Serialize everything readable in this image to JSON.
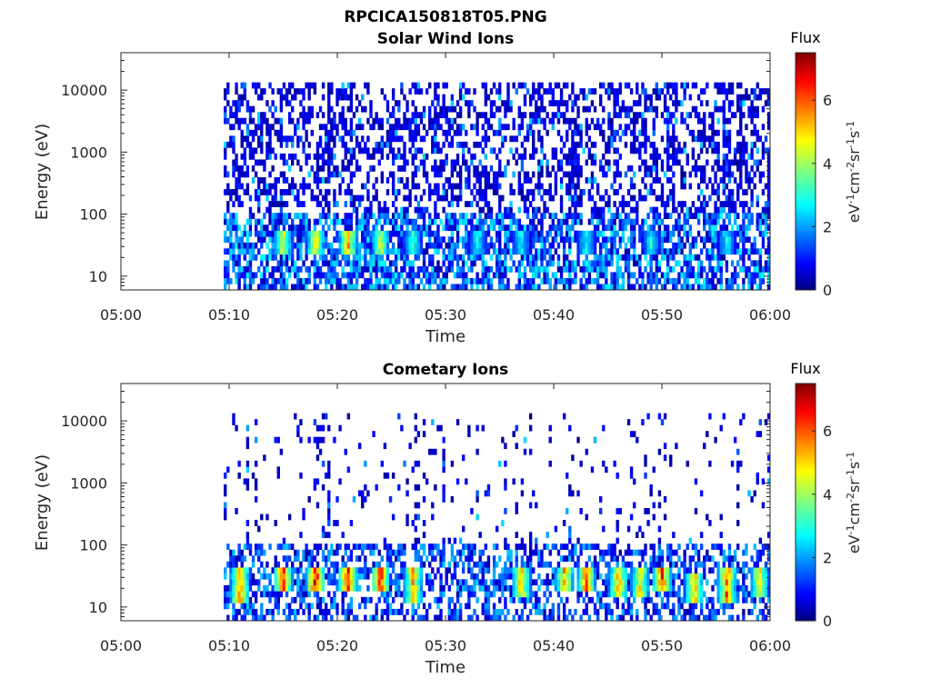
{
  "figure": {
    "title": "RPCICA150818T05.PNG"
  },
  "chart_data": [
    {
      "type": "heatmap",
      "title": "Solar Wind Ions",
      "xlabel": "Time",
      "ylabel": "Energy (eV)",
      "x_ticks": [
        "05:00",
        "05:10",
        "05:20",
        "05:30",
        "05:40",
        "05:50",
        "06:00"
      ],
      "xlim": [
        "05:00",
        "06:00"
      ],
      "data_start": "05:09:30",
      "y_scale": "log",
      "y_ticks": [
        10,
        100,
        1000,
        10000
      ],
      "y_tick_labels": [
        "10",
        "100",
        "1000",
        "10000"
      ],
      "ylim": [
        6,
        40000
      ],
      "colorbar": {
        "title": "Flux",
        "label": "eV-1cm-2sr-1s-1",
        "range": [
          0,
          7.5
        ],
        "ticks": [
          0,
          2,
          4,
          6
        ],
        "colormap": "jet"
      },
      "features": [
        {
          "time": "05:15",
          "energy_range": [
            25,
            45
          ],
          "flux": 4.5
        },
        {
          "time": "05:18",
          "energy_range": [
            25,
            45
          ],
          "flux": 5.0
        },
        {
          "time": "05:21",
          "energy_range": [
            25,
            45
          ],
          "flux": 5.5
        },
        {
          "time": "05:24",
          "energy_range": [
            25,
            45
          ],
          "flux": 4.5
        },
        {
          "time": "05:27",
          "energy_range": [
            25,
            45
          ],
          "flux": 3.5
        },
        {
          "time": "05:33",
          "energy_range": [
            25,
            45
          ],
          "flux": 3.0
        },
        {
          "time": "05:37",
          "energy_range": [
            25,
            45
          ],
          "flux": 3.0
        },
        {
          "time": "05:43",
          "energy_range": [
            25,
            45
          ],
          "flux": 3.0
        },
        {
          "time": "05:49",
          "energy_range": [
            25,
            45
          ],
          "flux": 3.0
        },
        {
          "time": "05:56",
          "energy_range": [
            25,
            45
          ],
          "flux": 3.0
        }
      ]
    },
    {
      "type": "heatmap",
      "title": "Cometary Ions",
      "xlabel": "Time",
      "ylabel": "Energy (eV)",
      "x_ticks": [
        "05:00",
        "05:10",
        "05:20",
        "05:30",
        "05:40",
        "05:50",
        "06:00"
      ],
      "xlim": [
        "05:00",
        "06:00"
      ],
      "data_start": "05:09:30",
      "y_scale": "log",
      "y_ticks": [
        10,
        100,
        1000,
        10000
      ],
      "y_tick_labels": [
        "10",
        "100",
        "1000",
        "10000"
      ],
      "ylim": [
        6,
        40000
      ],
      "colorbar": {
        "title": "Flux",
        "label": "eV-1cm-2sr-1s-1",
        "range": [
          0,
          7.5
        ],
        "ticks": [
          0,
          2,
          4,
          6
        ],
        "colormap": "jet"
      },
      "features": [
        {
          "time": "05:11",
          "energy_range": [
            12,
            35
          ],
          "flux": 6.0
        },
        {
          "time": "05:15",
          "energy_range": [
            20,
            40
          ],
          "flux": 6.5
        },
        {
          "time": "05:18",
          "energy_range": [
            20,
            40
          ],
          "flux": 6.8
        },
        {
          "time": "05:21",
          "energy_range": [
            20,
            40
          ],
          "flux": 7.0
        },
        {
          "time": "05:24",
          "energy_range": [
            20,
            40
          ],
          "flux": 6.5
        },
        {
          "time": "05:27",
          "energy_range": [
            12,
            35
          ],
          "flux": 5.5
        },
        {
          "time": "05:37",
          "energy_range": [
            15,
            35
          ],
          "flux": 5.5
        },
        {
          "time": "05:41",
          "energy_range": [
            20,
            40
          ],
          "flux": 5.5
        },
        {
          "time": "05:43",
          "energy_range": [
            20,
            40
          ],
          "flux": 6.0
        },
        {
          "time": "05:46",
          "energy_range": [
            15,
            40
          ],
          "flux": 5.5
        },
        {
          "time": "05:48",
          "energy_range": [
            15,
            35
          ],
          "flux": 5.0
        },
        {
          "time": "05:50",
          "energy_range": [
            20,
            40
          ],
          "flux": 6.5
        },
        {
          "time": "05:53",
          "energy_range": [
            12,
            30
          ],
          "flux": 5.5
        },
        {
          "time": "05:56",
          "energy_range": [
            12,
            35
          ],
          "flux": 6.0
        },
        {
          "time": "05:59",
          "energy_range": [
            15,
            35
          ],
          "flux": 5.0
        }
      ]
    }
  ]
}
